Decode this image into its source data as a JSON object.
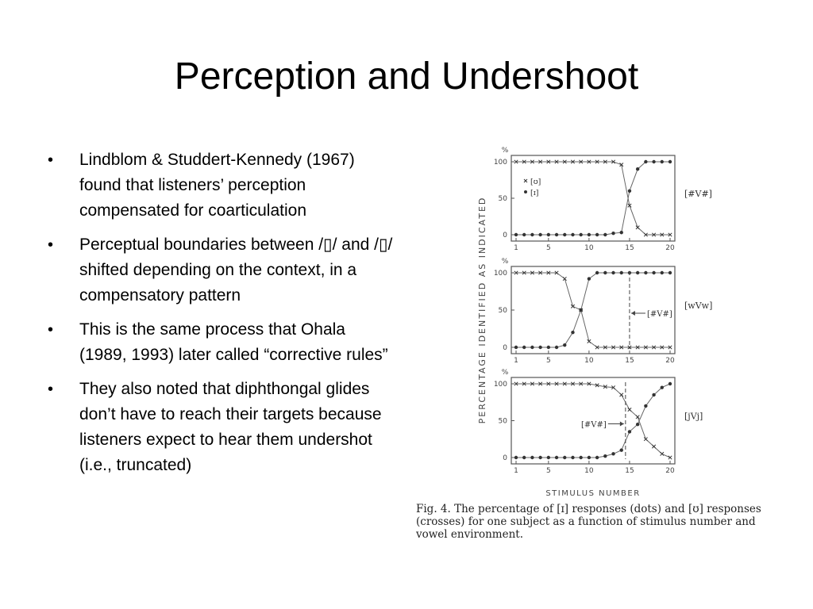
{
  "slide": {
    "title": "Perception and Undershoot",
    "bullets": [
      "Lindblom & Studdert-Kennedy (1967) found that listeners’ perception compensated for coarticulation",
      "Perceptual boundaries between /▯/ and /▯/ shifted depending on the context, in a compensatory pattern",
      "This is the same process that Ohala (1989, 1993) later called “corrective rules”",
      "They also noted that diphthongal glides don’t have to reach their targets because listeners expect to hear them undershot (i.e., truncated)"
    ]
  },
  "figure": {
    "caption": "Fig. 4. The percentage of [ɪ] responses (dots) and [ʊ] responses (crosses) for one subject as a function of stimulus number and vowel environment.",
    "y_axis_label": "PERCENTAGE IDENTIFIED AS INDICATED",
    "x_axis_label": "STIMULUS NUMBER",
    "percent_sign": "%",
    "legend_cross": "[ʊ]",
    "legend_dot": "[ɪ]",
    "y_ticks": [
      "100",
      "50",
      "0"
    ],
    "x_ticks": [
      "1",
      "5",
      "10",
      "15",
      "20"
    ],
    "panels": [
      {
        "environment": "[#V#]",
        "boundary_marker": ""
      },
      {
        "environment": "[wVw]",
        "boundary_marker": "[#V#]"
      },
      {
        "environment": "[jVj]",
        "boundary_marker": "[#V#]"
      }
    ]
  },
  "chart_data": [
    {
      "type": "scatter",
      "title": "",
      "environment": "[#V#]",
      "xlim": [
        1,
        20
      ],
      "ylim": [
        0,
        100
      ],
      "xlabel": "STIMULUS NUMBER",
      "ylabel": "PERCENTAGE IDENTIFIED AS INDICATED",
      "series": [
        {
          "name": "[ɪ]",
          "marker": "dot",
          "x": [
            1,
            2,
            3,
            4,
            5,
            6,
            7,
            8,
            9,
            10,
            11,
            12,
            13,
            14,
            15,
            16,
            17,
            18,
            19,
            20
          ],
          "y": [
            0,
            0,
            0,
            0,
            0,
            0,
            0,
            0,
            0,
            0,
            0,
            0,
            2,
            3,
            60,
            90,
            100,
            100,
            100,
            100
          ]
        },
        {
          "name": "[ʊ]",
          "marker": "cross",
          "x": [
            1,
            2,
            3,
            4,
            5,
            6,
            7,
            8,
            9,
            10,
            11,
            12,
            13,
            14,
            15,
            16,
            17,
            18,
            19,
            20
          ],
          "y": [
            100,
            100,
            100,
            100,
            100,
            100,
            100,
            100,
            100,
            100,
            100,
            100,
            100,
            96,
            40,
            10,
            0,
            0,
            0,
            0
          ]
        }
      ]
    },
    {
      "type": "scatter",
      "title": "",
      "environment": "[wVw]",
      "xlim": [
        1,
        20
      ],
      "ylim": [
        0,
        100
      ],
      "xlabel": "STIMULUS NUMBER",
      "ylabel": "PERCENTAGE IDENTIFIED AS INDICATED",
      "boundary_at": 15,
      "series": [
        {
          "name": "[ɪ]",
          "marker": "dot",
          "x": [
            1,
            2,
            3,
            4,
            5,
            6,
            7,
            8,
            9,
            10,
            11,
            12,
            13,
            14,
            15,
            16,
            17,
            18,
            19,
            20
          ],
          "y": [
            0,
            0,
            0,
            0,
            0,
            0,
            3,
            20,
            50,
            92,
            100,
            100,
            100,
            100,
            100,
            100,
            100,
            100,
            100,
            100
          ]
        },
        {
          "name": "[ʊ]",
          "marker": "cross",
          "x": [
            1,
            2,
            3,
            4,
            5,
            6,
            7,
            8,
            9,
            10,
            11,
            12,
            13,
            14,
            15,
            16,
            17,
            18,
            19,
            20
          ],
          "y": [
            100,
            100,
            100,
            100,
            100,
            100,
            92,
            55,
            50,
            8,
            0,
            0,
            0,
            0,
            0,
            0,
            0,
            0,
            0,
            0
          ]
        }
      ]
    },
    {
      "type": "scatter",
      "title": "",
      "environment": "[jVj]",
      "xlim": [
        1,
        20
      ],
      "ylim": [
        0,
        100
      ],
      "xlabel": "STIMULUS NUMBER",
      "ylabel": "PERCENTAGE IDENTIFIED AS INDICATED",
      "boundary_at": 14.5,
      "series": [
        {
          "name": "[ɪ]",
          "marker": "dot",
          "x": [
            1,
            2,
            3,
            4,
            5,
            6,
            7,
            8,
            9,
            10,
            11,
            12,
            13,
            14,
            15,
            16,
            17,
            18,
            19,
            20
          ],
          "y": [
            0,
            0,
            0,
            0,
            0,
            0,
            0,
            0,
            0,
            0,
            0,
            2,
            5,
            10,
            35,
            45,
            70,
            85,
            95,
            100
          ]
        },
        {
          "name": "[ʊ]",
          "marker": "cross",
          "x": [
            1,
            2,
            3,
            4,
            5,
            6,
            7,
            8,
            9,
            10,
            11,
            12,
            13,
            14,
            15,
            16,
            17,
            18,
            19,
            20
          ],
          "y": [
            100,
            100,
            100,
            100,
            100,
            100,
            100,
            100,
            100,
            100,
            98,
            96,
            95,
            85,
            65,
            55,
            25,
            15,
            5,
            0
          ]
        }
      ]
    }
  ]
}
